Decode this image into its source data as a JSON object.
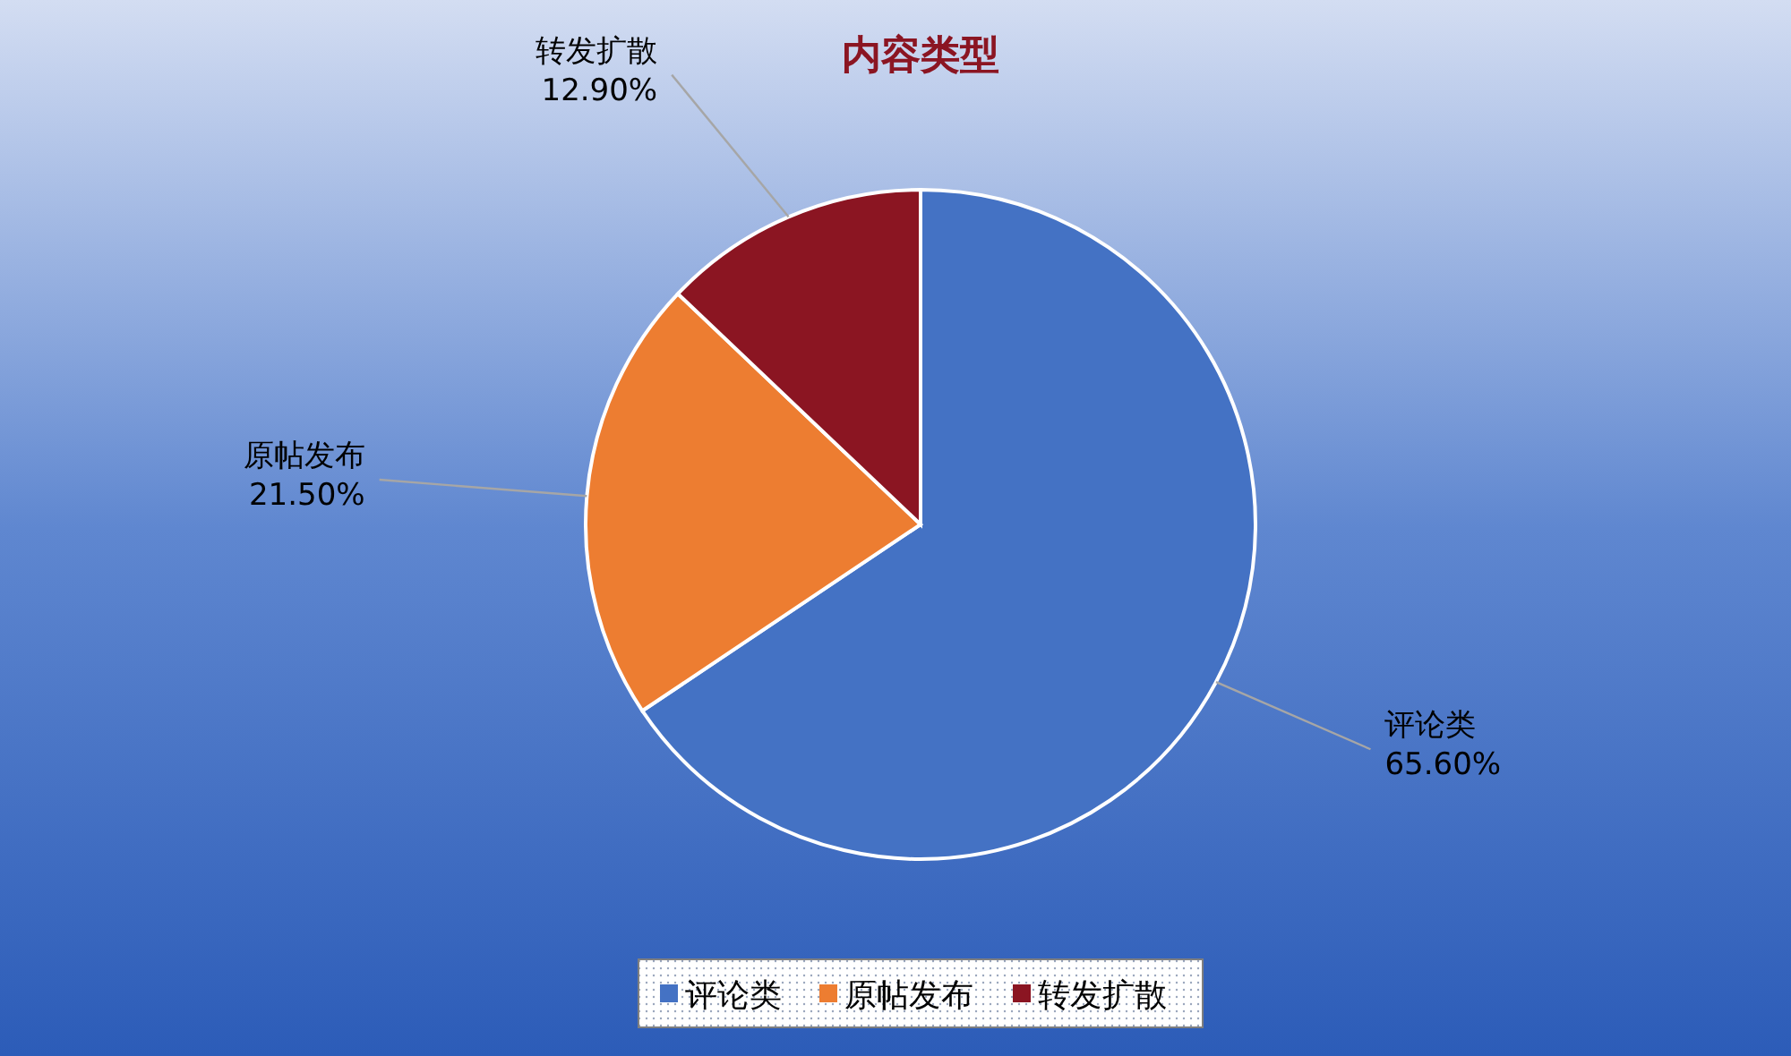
{
  "chart_data": {
    "type": "pie",
    "title": "内容类型",
    "categories": [
      "评论类",
      "原帖发布",
      "转发扩散"
    ],
    "values": [
      65.6,
      21.5,
      12.9
    ],
    "colors": [
      "#4472c4",
      "#ed7d31",
      "#8b1522"
    ],
    "value_labels": [
      "65.60%",
      "21.50%",
      "12.90%"
    ],
    "legend": "bottom"
  }
}
